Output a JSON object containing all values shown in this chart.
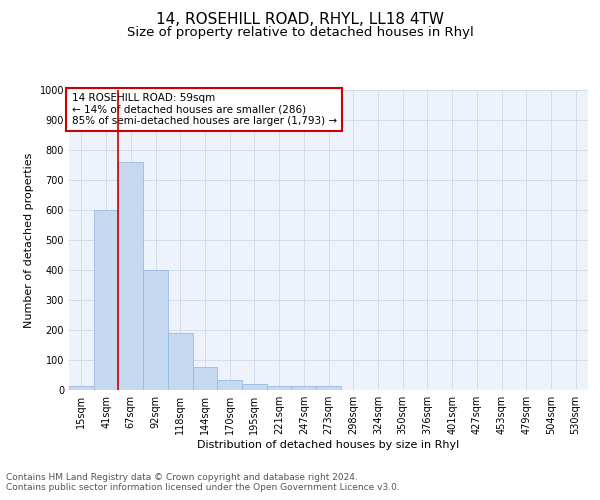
{
  "title": "14, ROSEHILL ROAD, RHYL, LL18 4TW",
  "subtitle": "Size of property relative to detached houses in Rhyl",
  "xlabel": "Distribution of detached houses by size in Rhyl",
  "ylabel": "Number of detached properties",
  "bar_labels": [
    "15sqm",
    "41sqm",
    "67sqm",
    "92sqm",
    "118sqm",
    "144sqm",
    "170sqm",
    "195sqm",
    "221sqm",
    "247sqm",
    "273sqm",
    "298sqm",
    "324sqm",
    "350sqm",
    "376sqm",
    "401sqm",
    "427sqm",
    "453sqm",
    "479sqm",
    "504sqm",
    "530sqm"
  ],
  "bar_values": [
    15,
    600,
    760,
    400,
    190,
    78,
    35,
    20,
    15,
    12,
    12,
    0,
    0,
    0,
    0,
    0,
    0,
    0,
    0,
    0,
    0
  ],
  "bar_color": "#c5d9f1",
  "bar_edgecolor": "#8eb4e3",
  "vline_x_idx": 2,
  "vline_color": "#cc0000",
  "ylim": [
    0,
    1000
  ],
  "yticks": [
    0,
    100,
    200,
    300,
    400,
    500,
    600,
    700,
    800,
    900,
    1000
  ],
  "annotation_title": "14 ROSEHILL ROAD: 59sqm",
  "annotation_line1": "← 14% of detached houses are smaller (286)",
  "annotation_line2": "85% of semi-detached houses are larger (1,793) →",
  "annotation_box_color": "#cc0000",
  "grid_color": "#d0d8e8",
  "bg_color": "#eef2fa",
  "footer_line1": "Contains HM Land Registry data © Crown copyright and database right 2024.",
  "footer_line2": "Contains public sector information licensed under the Open Government Licence v3.0.",
  "title_fontsize": 11,
  "subtitle_fontsize": 9.5,
  "axis_label_fontsize": 8,
  "tick_fontsize": 7,
  "annotation_fontsize": 7.5,
  "footer_fontsize": 6.5
}
